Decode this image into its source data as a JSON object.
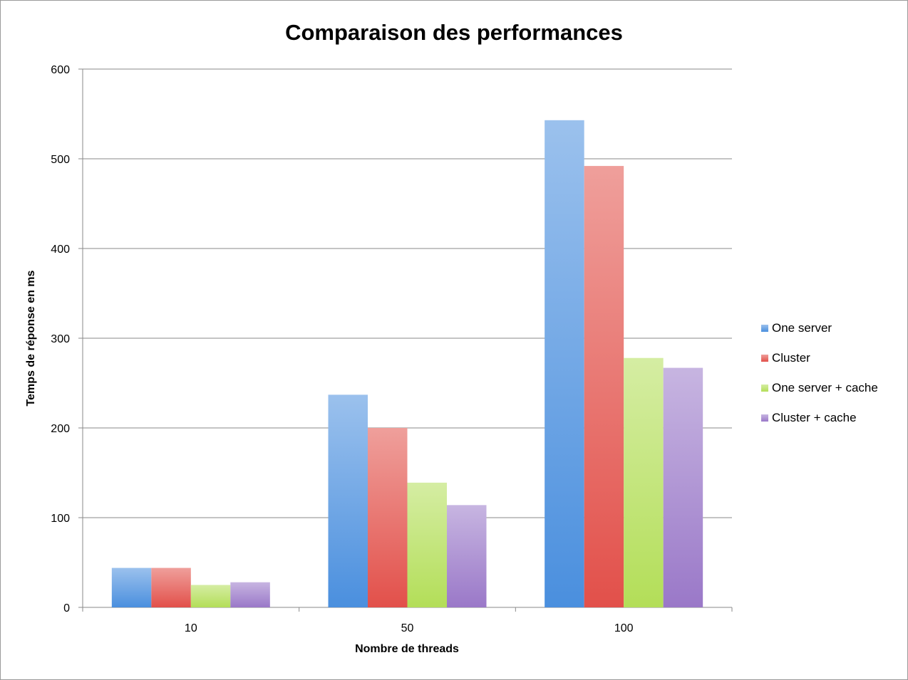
{
  "chart_data": {
    "type": "bar",
    "title": "Comparaison des performances",
    "xlabel": "Nombre de threads",
    "ylabel": "Temps de réponse en ms",
    "categories": [
      "10",
      "50",
      "100"
    ],
    "ylim": [
      0,
      600
    ],
    "yticks": [
      0,
      100,
      200,
      300,
      400,
      500,
      600
    ],
    "grid": true,
    "legend_position": "right",
    "series": [
      {
        "name": "One server",
        "values": [
          44,
          237,
          543
        ],
        "color": "#4a8fde"
      },
      {
        "name": "Cluster",
        "values": [
          44,
          200,
          492
        ],
        "color": "#e2504a"
      },
      {
        "name": "One server + cache",
        "values": [
          25,
          139,
          278
        ],
        "color": "#b3de58"
      },
      {
        "name": "Cluster + cache",
        "values": [
          28,
          114,
          267
        ],
        "color": "#9a78c8"
      }
    ]
  }
}
